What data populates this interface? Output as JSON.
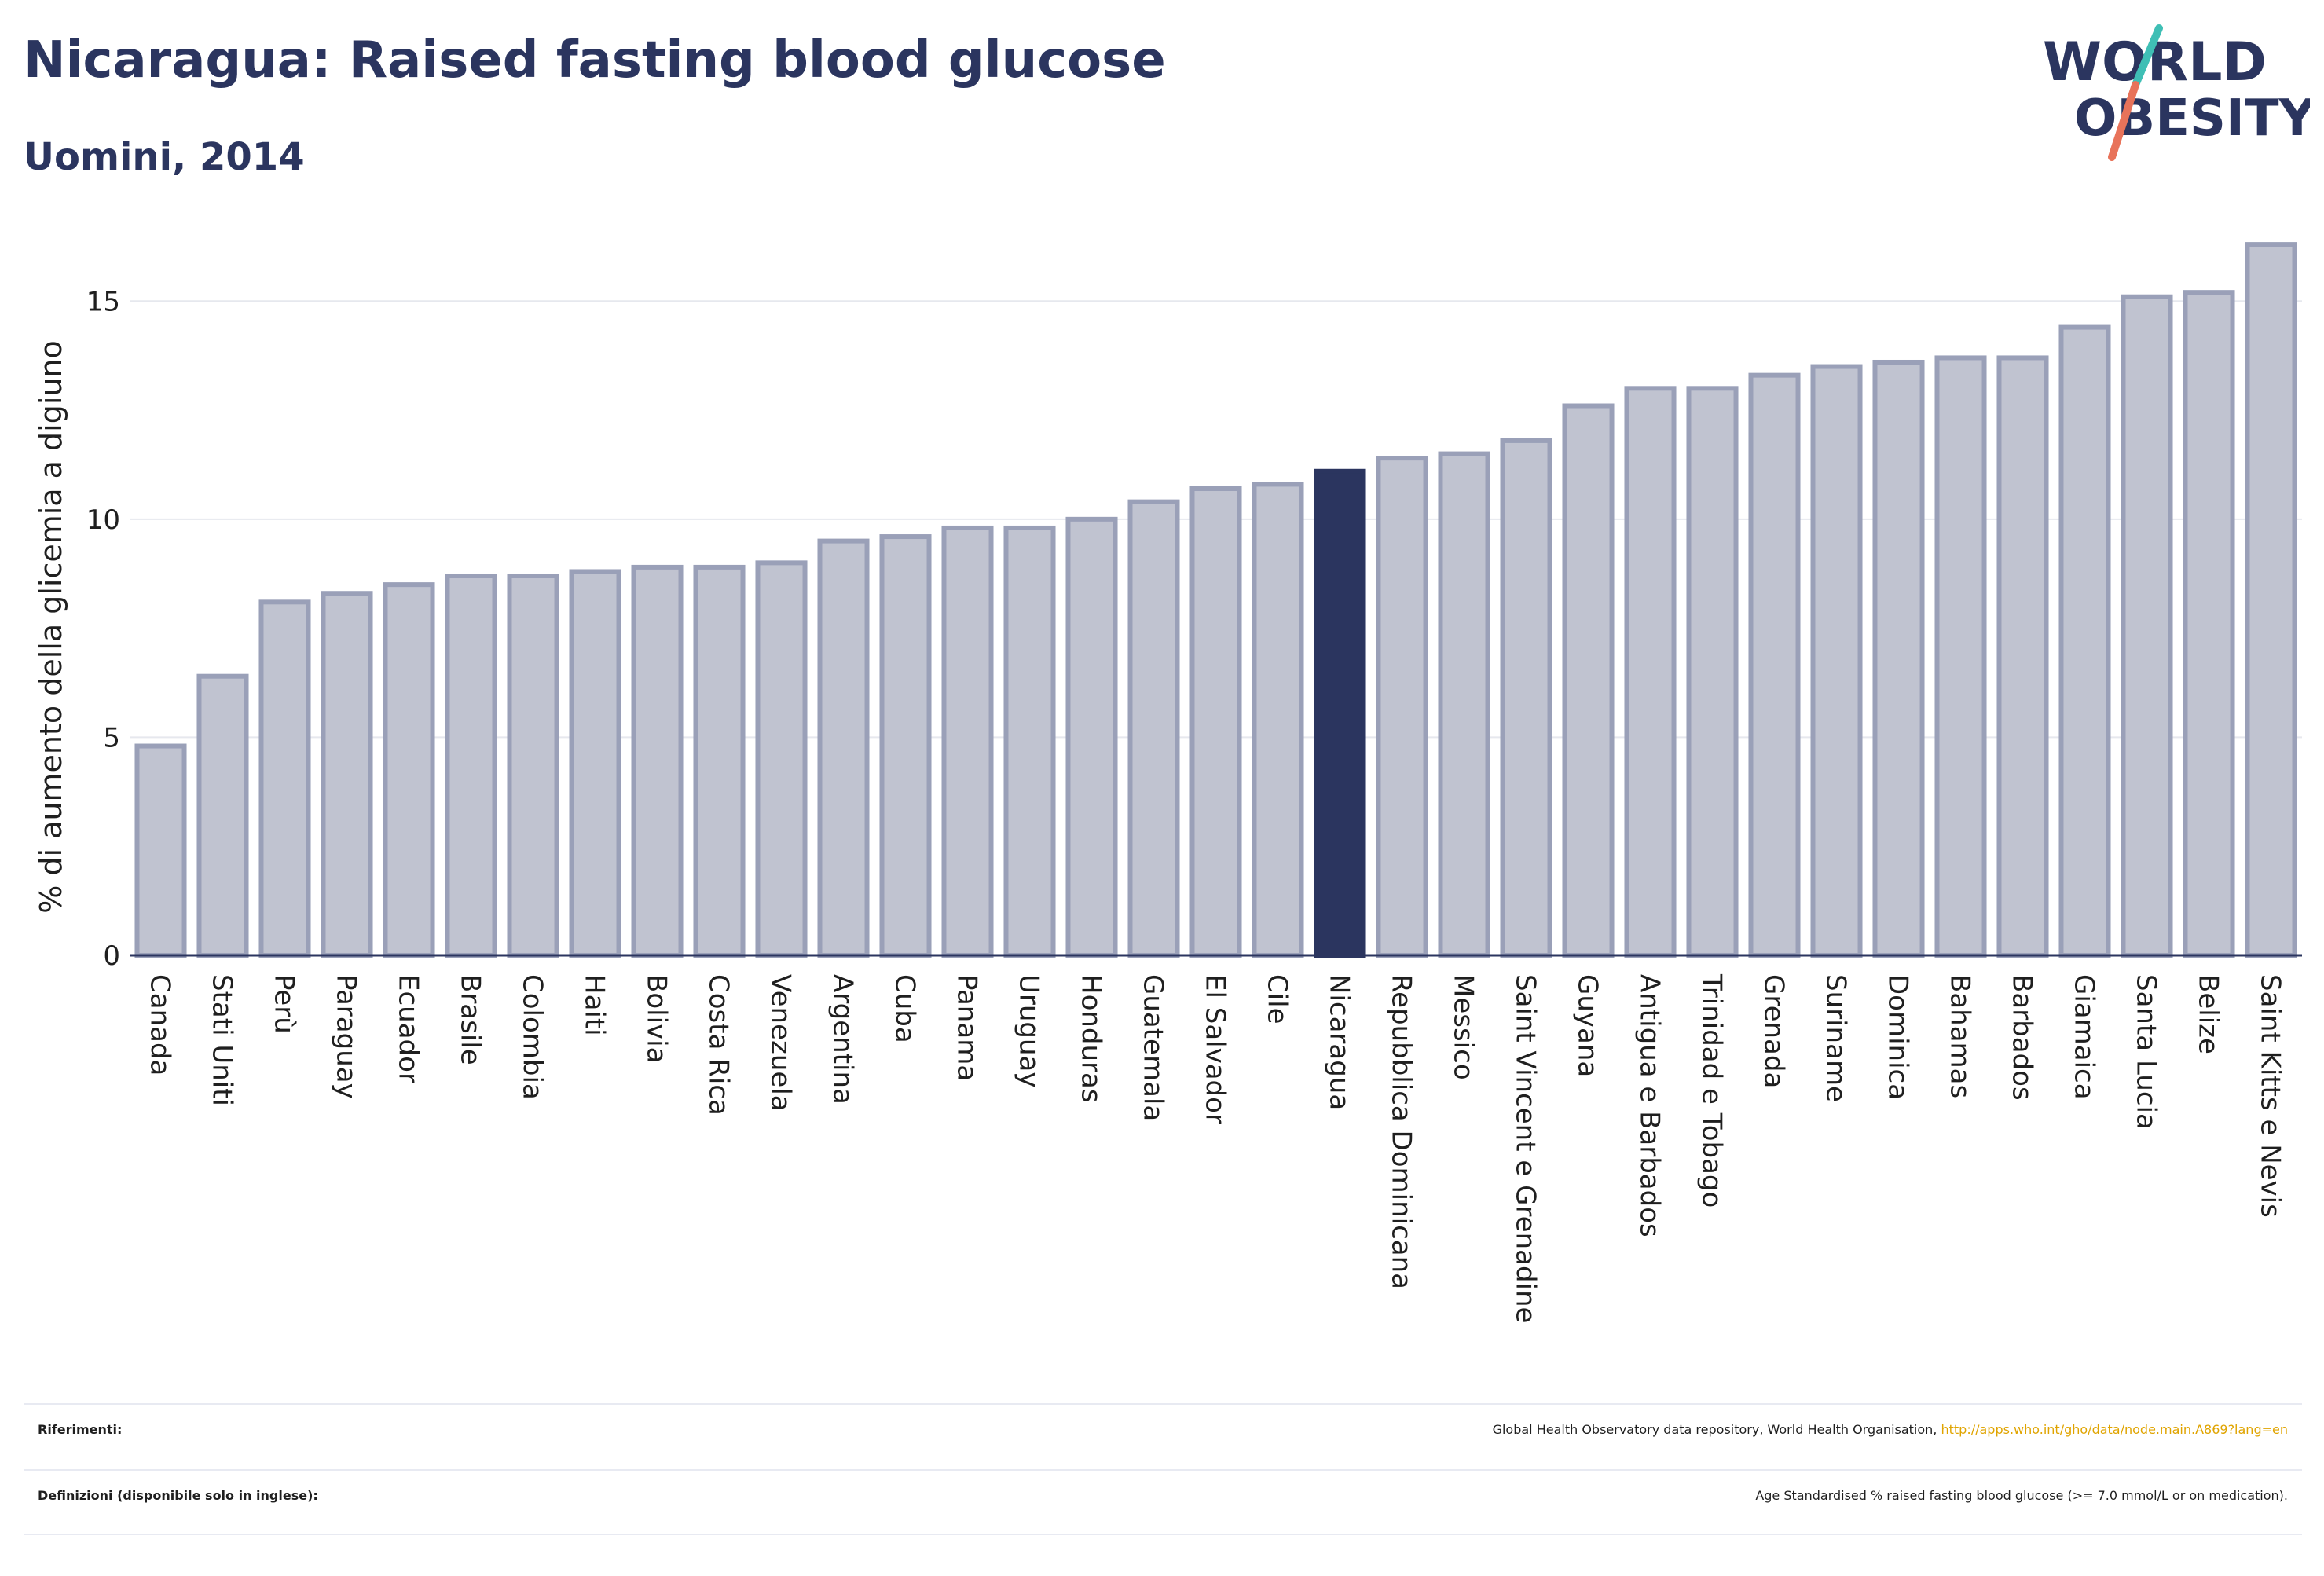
{
  "header": {
    "title": "Nicaragua: Raised fasting blood glucose",
    "subtitle": "Uomini, 2014"
  },
  "logo": {
    "line1": "WORLD",
    "line2": "OBESITY",
    "text_color": "#2b355f",
    "slash_colors": [
      "#3fbfb5",
      "#e8735a"
    ]
  },
  "chart_data": {
    "type": "bar",
    "title": "Nicaragua: Raised fasting blood glucose",
    "subtitle": "Uomini, 2014",
    "xlabel": "",
    "ylabel": "% di aumento della glicemia a digiuno",
    "ylim": [
      0,
      16.5
    ],
    "yticks": [
      0,
      5,
      10,
      15
    ],
    "grid": "horizontal",
    "highlight": "Nicaragua",
    "colors": {
      "bar_fill": "#c0c3d0",
      "bar_stroke": "#9aa0b8",
      "highlight_fill": "#2b355f",
      "axis": "#2b355f",
      "grid": "#e6e8ee"
    },
    "categories": [
      "Canada",
      "Stati Uniti",
      "Perù",
      "Paraguay",
      "Ecuador",
      "Brasile",
      "Colombia",
      "Haiti",
      "Bolivia",
      "Costa Rica",
      "Venezuela",
      "Argentina",
      "Cuba",
      "Panama",
      "Uruguay",
      "Honduras",
      "Guatemala",
      "El Salvador",
      "Cile",
      "Nicaragua",
      "Repubblica Dominicana",
      "Messico",
      "Saint Vincent e Grenadine",
      "Guyana",
      "Antigua e Barbados",
      "Trinidad e Tobago",
      "Grenada",
      "Suriname",
      "Dominica",
      "Bahamas",
      "Barbados",
      "Giamaica",
      "Santa Lucia",
      "Belize",
      "Saint Kitts e Nevis"
    ],
    "values": [
      4.8,
      6.4,
      8.1,
      8.3,
      8.5,
      8.7,
      8.7,
      8.8,
      8.9,
      8.9,
      9.0,
      9.5,
      9.6,
      9.8,
      9.8,
      10.0,
      10.4,
      10.7,
      10.8,
      11.1,
      11.4,
      11.5,
      11.8,
      12.6,
      13.0,
      13.0,
      13.3,
      13.5,
      13.6,
      13.7,
      13.7,
      14.4,
      15.1,
      15.2,
      16.3
    ]
  },
  "footer": {
    "references_label": "Riferimenti:",
    "references_text": "Global Health Observatory data repository, World Health Organisation, ",
    "references_link": "http://apps.who.int/gho/data/node.main.A869?lang=en",
    "definitions_label": "Definizioni (disponibile solo in inglese):",
    "definitions_text": "Age Standardised % raised fasting blood glucose (>= 7.0 mmol/L or on medication)."
  }
}
